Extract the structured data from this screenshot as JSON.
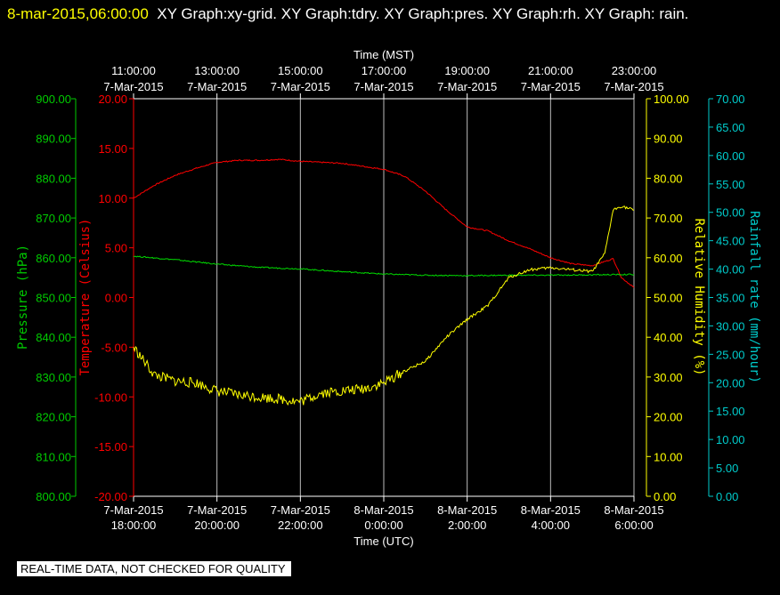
{
  "header": {
    "timestamp": "8-mar-2015,06:00:00",
    "title": "XY Graph:xy-grid.  XY Graph:tdry.  XY Graph:pres.  XY Graph:rh.  XY Graph: rain."
  },
  "notice": "REAL-TIME DATA, NOT CHECKED FOR QUALITY",
  "chart_data": {
    "type": "line",
    "x_top": {
      "title": "Time (MST)",
      "ticks": [
        {
          "time": "11:00:00",
          "date": "7-Mar-2015"
        },
        {
          "time": "13:00:00",
          "date": "7-Mar-2015"
        },
        {
          "time": "15:00:00",
          "date": "7-Mar-2015"
        },
        {
          "time": "17:00:00",
          "date": "7-Mar-2015"
        },
        {
          "time": "19:00:00",
          "date": "7-Mar-2015"
        },
        {
          "time": "21:00:00",
          "date": "7-Mar-2015"
        },
        {
          "time": "23:00:00",
          "date": "7-Mar-2015"
        }
      ]
    },
    "x_bottom": {
      "title": "Time (UTC)",
      "ticks": [
        {
          "date": "7-Mar-2015",
          "time": "18:00:00"
        },
        {
          "date": "7-Mar-2015",
          "time": "20:00:00"
        },
        {
          "date": "7-Mar-2015",
          "time": "22:00:00"
        },
        {
          "date": "8-Mar-2015",
          "time": "0:00:00"
        },
        {
          "date": "8-Mar-2015",
          "time": "2:00:00"
        },
        {
          "date": "8-Mar-2015",
          "time": "4:00:00"
        },
        {
          "date": "8-Mar-2015",
          "time": "6:00:00"
        }
      ],
      "range_hours_utc": [
        18,
        30
      ]
    },
    "axes": {
      "pressure": {
        "label": "Pressure (hPa)",
        "min": 800,
        "max": 900,
        "step": 10,
        "decimals": 2,
        "color": "#00cc00"
      },
      "temperature": {
        "label": "Temperature (Celsius)",
        "min": -20,
        "max": 20,
        "step": 5,
        "decimals": 2,
        "color": "#ff0000"
      },
      "humidity": {
        "label": "Relative Humidity (%)",
        "min": 0,
        "max": 100,
        "step": 10,
        "decimals": 2,
        "color": "#ffff00"
      },
      "rain": {
        "label": "Rainfall rate (mm/hour)",
        "min": 0,
        "max": 70,
        "step": 5,
        "decimals": 2,
        "color": "#00cccc"
      }
    },
    "grid_color": "#ffffff",
    "series": [
      {
        "key": "temperature",
        "color": "#ff0000",
        "points": [
          [
            18,
            10.0
          ],
          [
            18.5,
            11.3
          ],
          [
            19,
            12.3
          ],
          [
            19.5,
            13.0
          ],
          [
            20,
            13.6
          ],
          [
            20.5,
            13.8
          ],
          [
            21,
            13.8
          ],
          [
            21.5,
            13.9
          ],
          [
            22,
            13.7
          ],
          [
            22.5,
            13.6
          ],
          [
            23,
            13.5
          ],
          [
            23.5,
            13.2
          ],
          [
            24,
            12.9
          ],
          [
            24.5,
            12.2
          ],
          [
            25,
            10.7
          ],
          [
            25.5,
            8.8
          ],
          [
            26,
            7.1
          ],
          [
            26.5,
            6.7
          ],
          [
            27,
            5.7
          ],
          [
            27.5,
            4.9
          ],
          [
            28,
            4.0
          ],
          [
            28.5,
            3.4
          ],
          [
            29,
            3.2
          ],
          [
            29.5,
            3.9
          ],
          [
            29.7,
            2.0
          ],
          [
            30,
            1.0
          ]
        ]
      },
      {
        "key": "pressure",
        "color": "#00dd00",
        "points": [
          [
            18,
            860.4
          ],
          [
            19,
            859.5
          ],
          [
            20,
            858.4
          ],
          [
            21,
            857.6
          ],
          [
            22,
            857.2
          ],
          [
            23,
            856.5
          ],
          [
            24,
            855.9
          ],
          [
            25,
            855.6
          ],
          [
            26,
            855.5
          ],
          [
            27,
            855.6
          ],
          [
            28,
            855.6
          ],
          [
            29,
            855.7
          ],
          [
            30,
            855.8
          ]
        ]
      },
      {
        "key": "humidity",
        "color": "#ffff00",
        "points": [
          [
            18,
            37.5
          ],
          [
            18.5,
            30.5
          ],
          [
            19,
            29.0
          ],
          [
            19.5,
            28.5
          ],
          [
            20,
            26.5
          ],
          [
            20.5,
            25.5
          ],
          [
            21,
            25.0
          ],
          [
            21.5,
            24.5
          ],
          [
            22,
            23.8
          ],
          [
            22.5,
            26.0
          ],
          [
            23,
            26.5
          ],
          [
            23.5,
            27.0
          ],
          [
            24,
            28.5
          ],
          [
            24.5,
            31.5
          ],
          [
            25,
            34.0
          ],
          [
            25.5,
            40.0
          ],
          [
            26,
            44.5
          ],
          [
            26.5,
            48.0
          ],
          [
            27,
            55.0
          ],
          [
            27.5,
            57.0
          ],
          [
            28,
            57.5
          ],
          [
            28.5,
            57.0
          ],
          [
            29,
            56.5
          ],
          [
            29.3,
            61.0
          ],
          [
            29.5,
            72.0
          ],
          [
            29.7,
            73.0
          ],
          [
            30,
            72.0
          ]
        ]
      }
    ]
  }
}
